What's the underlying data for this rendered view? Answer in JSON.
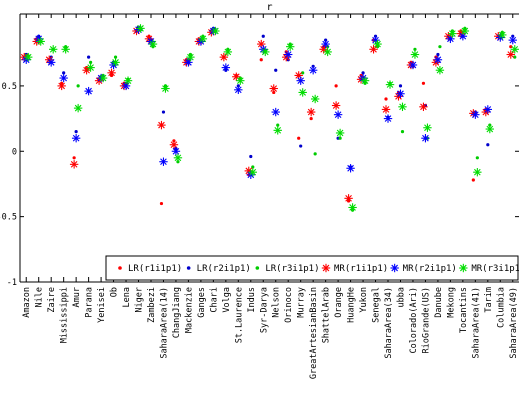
{
  "chart_data": {
    "type": "scatter",
    "title": "r",
    "xlabel": "",
    "ylabel": "",
    "ylim": [
      -1,
      1.05
    ],
    "yticks": [
      -1,
      -0.5,
      0,
      0.5
    ],
    "ytick_labels": [
      "-1",
      "-0.5",
      "0",
      "0.5"
    ],
    "grid": false,
    "legend_position": "bottom-right",
    "categories": [
      "Amazon",
      "Nile",
      "Zaire",
      "Mississippi",
      "Amur",
      "Parana",
      "Yenisei",
      "Ob",
      "Lena",
      "Niger",
      "Zambezi",
      "SaharaArea(14)",
      "ChangJiang",
      "Mackenzie",
      "Ganges",
      "Chari",
      "Volga",
      "St.Laurence",
      "Indus",
      "Syr-Darya",
      "Nelson",
      "Orinoco",
      "Murray",
      "GreatArtesianBasin",
      "ShattelArab",
      "Orange",
      "HuangHe",
      "Yukon",
      "Senegal",
      "SaharaArea(34)",
      "ubba",
      "Colorado(Ari)",
      "RioGrande(US)",
      "Danube",
      "Mekong",
      "Tocantins",
      "SaharaArea(41)",
      "Tarim",
      "Columbia",
      "SaharaArea(49)"
    ],
    "series": [
      {
        "name": "LR(r1i1p1)",
        "color": "#ff0000",
        "marker": "dot",
        "values": [
          0.72,
          0.86,
          0.7,
          0.52,
          -0.05,
          0.64,
          0.55,
          0.58,
          0.52,
          0.92,
          0.88,
          -0.4,
          0.08,
          0.7,
          0.86,
          0.92,
          0.72,
          0.58,
          -0.18,
          0.7,
          0.45,
          0.76,
          0.1,
          0.25,
          0.8,
          0.5,
          -0.38,
          0.58,
          0.85,
          0.4,
          0.45,
          0.68,
          0.52,
          0.72,
          0.88,
          0.92,
          -0.22,
          0.32,
          0.88,
          0.8
        ]
      },
      {
        "name": "LR(r2i1p1)",
        "color": "#0000cc",
        "marker": "dot",
        "values": [
          0.74,
          0.88,
          0.72,
          0.6,
          0.15,
          0.72,
          0.57,
          0.68,
          0.52,
          0.95,
          0.85,
          0.3,
          0.02,
          0.7,
          0.85,
          0.94,
          0.62,
          0.5,
          -0.04,
          0.88,
          0.62,
          0.7,
          0.04,
          0.65,
          0.85,
          0.1,
          -0.12,
          0.6,
          0.88,
          0.26,
          0.5,
          0.65,
          0.35,
          0.74,
          0.86,
          0.88,
          0.3,
          0.05,
          0.88,
          0.88
        ]
      },
      {
        "name": "LR(r3i1p1)",
        "color": "#00cc00",
        "marker": "dot",
        "values": [
          0.73,
          0.84,
          0.78,
          0.8,
          0.5,
          0.68,
          0.58,
          0.72,
          0.55,
          0.93,
          0.8,
          0.5,
          -0.08,
          0.74,
          0.88,
          0.92,
          0.78,
          0.56,
          -0.12,
          0.77,
          0.2,
          0.82,
          0.6,
          -0.02,
          0.8,
          0.1,
          -0.45,
          0.52,
          0.8,
          0.52,
          0.15,
          0.78,
          0.1,
          0.8,
          0.92,
          0.94,
          -0.05,
          0.2,
          0.91,
          0.72
        ]
      },
      {
        "name": "MR(r1i1p1)",
        "color": "#ff0000",
        "marker": "star",
        "values": [
          0.72,
          0.84,
          0.7,
          0.5,
          -0.1,
          0.62,
          0.54,
          0.6,
          0.5,
          0.92,
          0.86,
          0.2,
          0.05,
          0.68,
          0.84,
          0.91,
          0.72,
          0.57,
          -0.15,
          0.82,
          0.48,
          0.72,
          0.58,
          0.3,
          0.78,
          0.35,
          -0.36,
          0.55,
          0.78,
          0.32,
          0.42,
          0.66,
          0.34,
          0.68,
          0.88,
          0.9,
          0.29,
          0.3,
          0.88,
          0.74
        ]
      },
      {
        "name": "MR(r2i1p1)",
        "color": "#0000ff",
        "marker": "star",
        "values": [
          0.7,
          0.86,
          0.68,
          0.56,
          0.1,
          0.46,
          0.56,
          0.66,
          0.5,
          0.93,
          0.84,
          -0.08,
          0.0,
          0.68,
          0.84,
          0.92,
          0.64,
          0.47,
          -0.18,
          0.78,
          0.3,
          0.74,
          0.54,
          0.62,
          0.82,
          0.28,
          -0.13,
          0.56,
          0.85,
          0.25,
          0.44,
          0.66,
          0.1,
          0.7,
          0.86,
          0.88,
          0.28,
          0.32,
          0.87,
          0.85
        ]
      },
      {
        "name": "MR(r3i1p1)",
        "color": "#00dd00",
        "marker": "star",
        "values": [
          0.72,
          0.84,
          0.78,
          0.78,
          0.33,
          0.64,
          0.56,
          0.68,
          0.54,
          0.94,
          0.82,
          0.48,
          -0.05,
          0.72,
          0.86,
          0.92,
          0.76,
          0.54,
          -0.16,
          0.76,
          0.16,
          0.8,
          0.45,
          0.4,
          0.76,
          0.14,
          -0.43,
          0.54,
          0.82,
          0.51,
          0.34,
          0.74,
          0.18,
          0.62,
          0.9,
          0.92,
          -0.16,
          0.17,
          0.89,
          0.78
        ]
      }
    ]
  }
}
